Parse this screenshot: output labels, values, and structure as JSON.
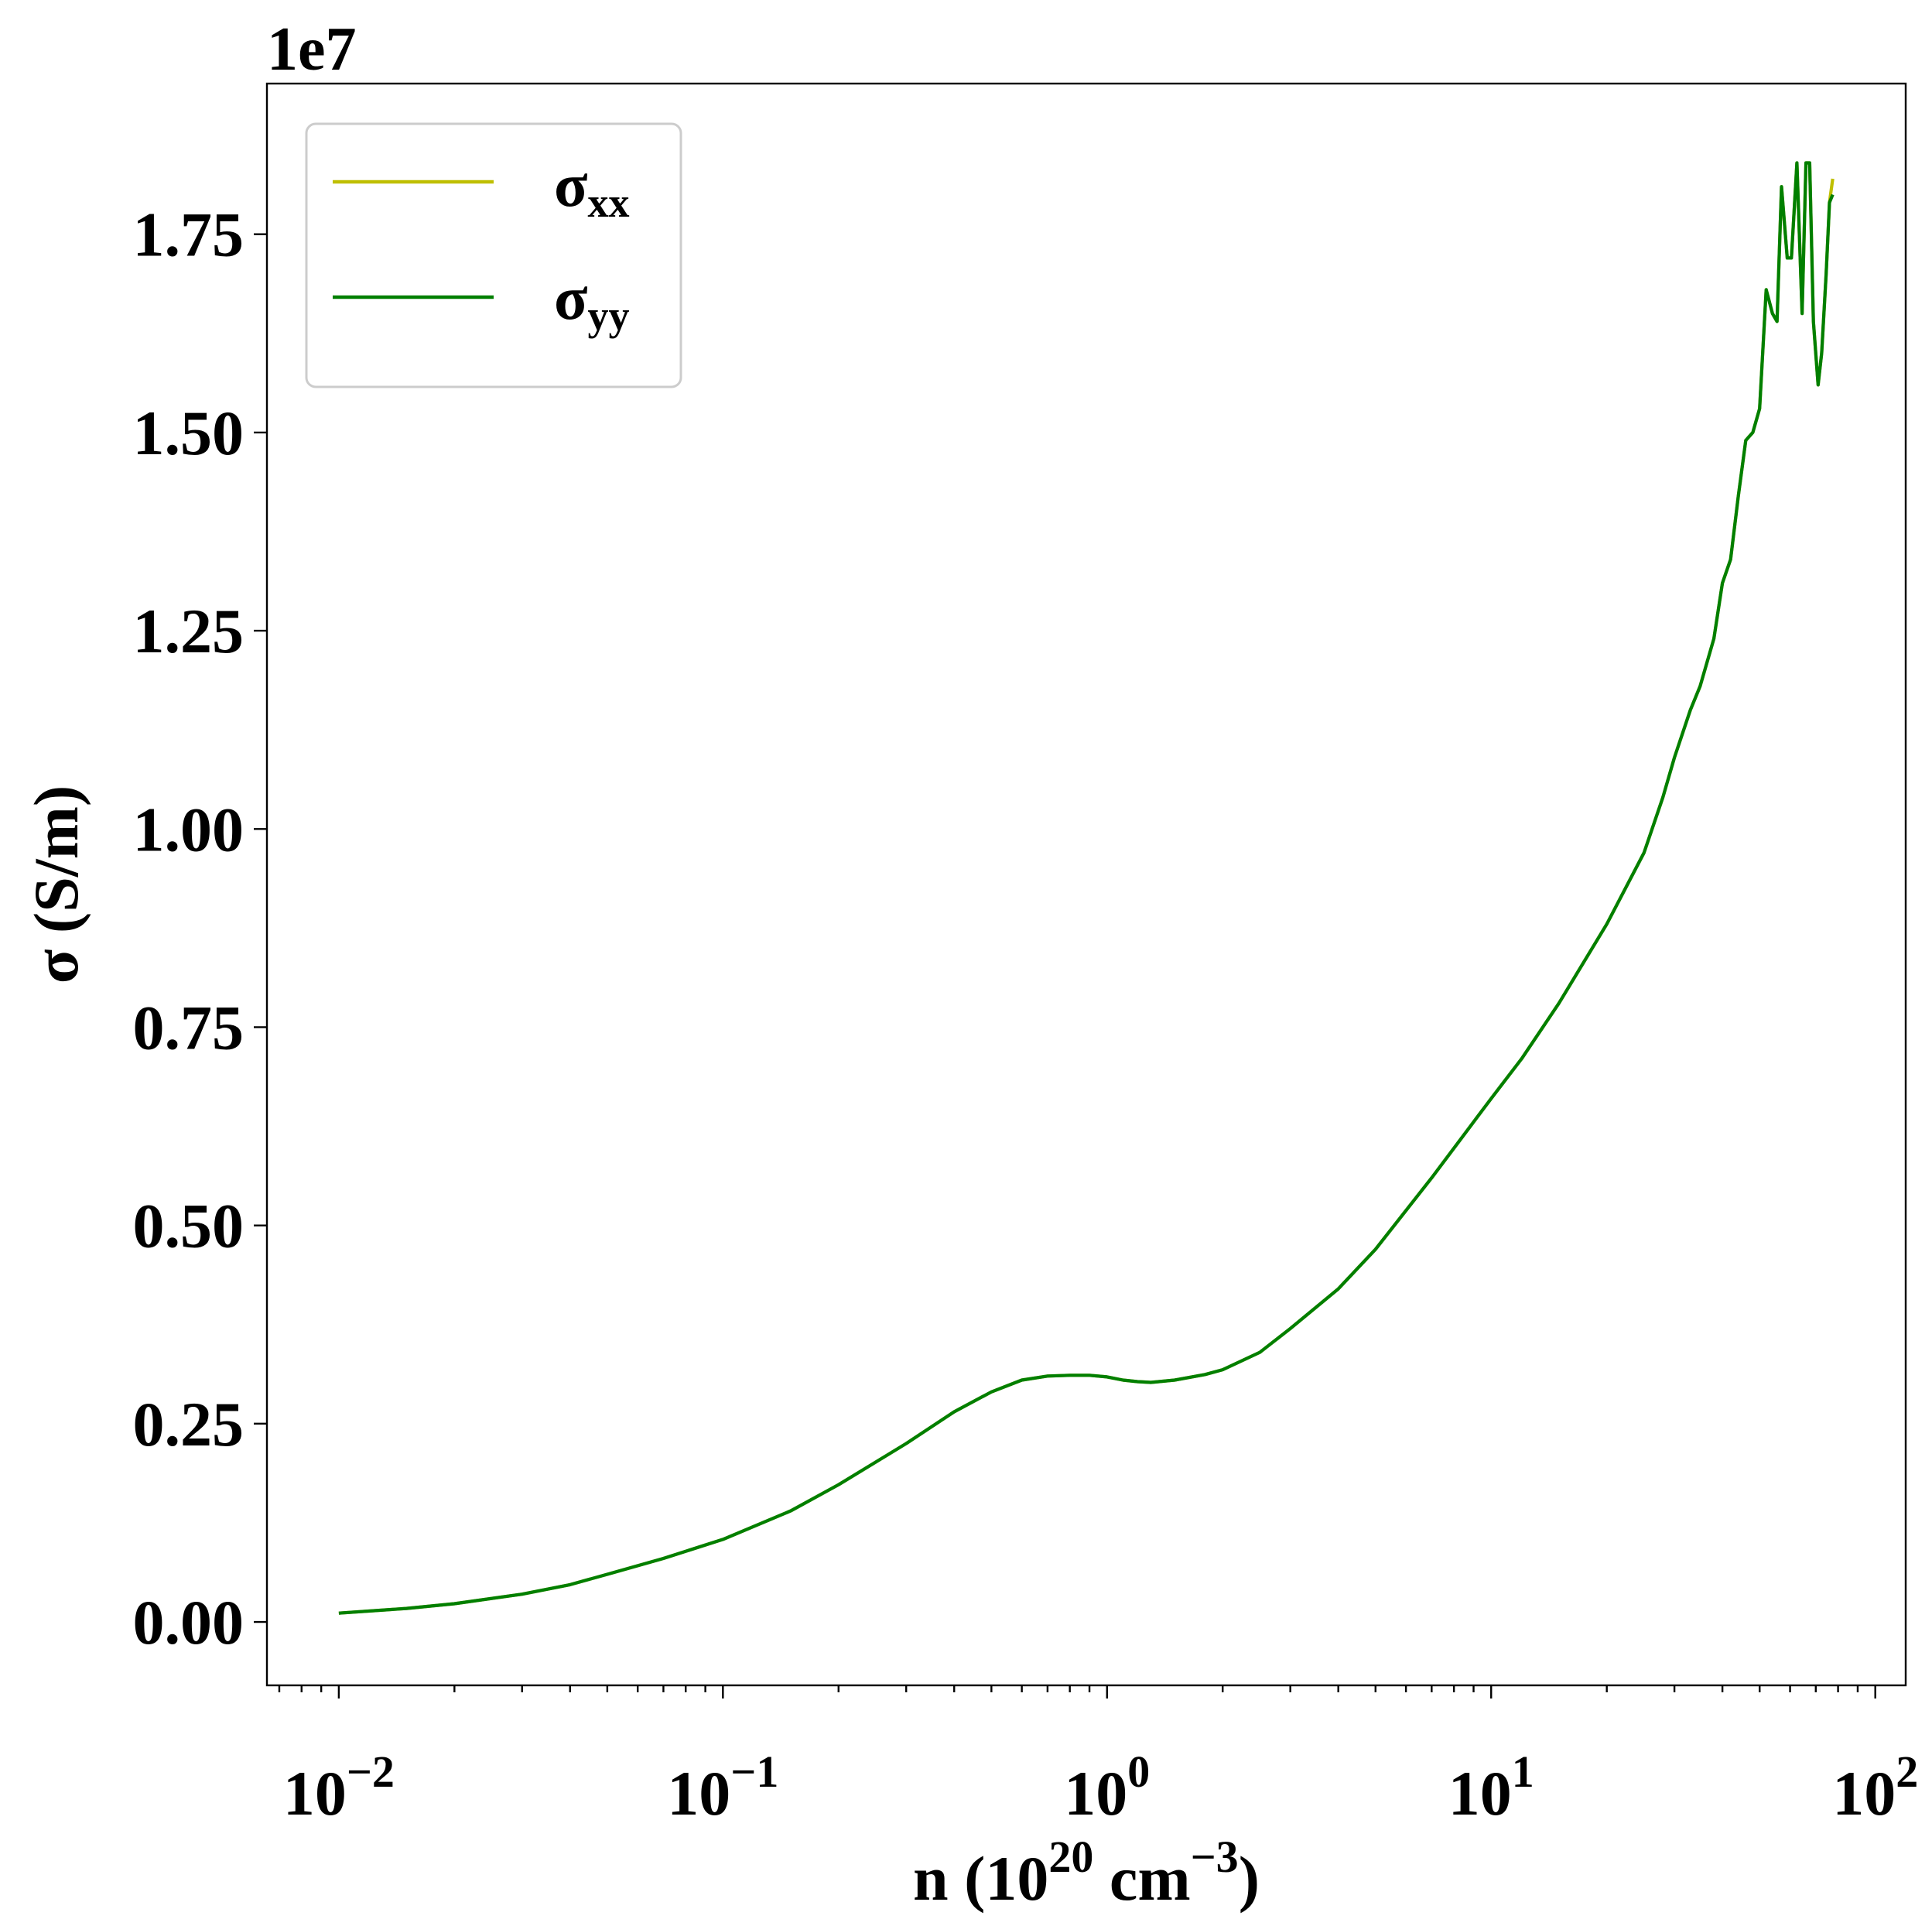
{
  "chart_data": {
    "type": "line",
    "xlabel": {
      "base": "n (10",
      "exp1": "20",
      "mid": " cm",
      "exp2": "−3",
      "end": ")"
    },
    "ylabel": "σ (S/m)",
    "y_offset_label": "1e7",
    "x_scale": "log",
    "xlim": [
      0.0065,
      120
    ],
    "ylim": [
      -0.08,
      1.94
    ],
    "y_multiplier": 10000000,
    "x_ticks_major": [
      {
        "value": 0.01,
        "base": "10",
        "exp": "−2"
      },
      {
        "value": 0.1,
        "base": "10",
        "exp": "−1"
      },
      {
        "value": 1,
        "base": "10",
        "exp": "0"
      },
      {
        "value": 10,
        "base": "10",
        "exp": "1"
      },
      {
        "value": 100,
        "base": "10",
        "exp": "2"
      }
    ],
    "y_ticks": [
      {
        "value": 0.0,
        "label": "0.00"
      },
      {
        "value": 0.25,
        "label": "0.25"
      },
      {
        "value": 0.5,
        "label": "0.50"
      },
      {
        "value": 0.75,
        "label": "0.75"
      },
      {
        "value": 1.0,
        "label": "1.00"
      },
      {
        "value": 1.25,
        "label": "1.25"
      },
      {
        "value": 1.5,
        "label": "1.50"
      },
      {
        "value": 1.75,
        "label": "1.75"
      }
    ],
    "grid": false,
    "legend_position": "upper-left",
    "series": [
      {
        "name": "σ",
        "name_sub": "xx",
        "color": "#bfbf00",
        "x": [
          0.01,
          0.015,
          0.02,
          0.03,
          0.04,
          0.05,
          0.07,
          0.1,
          0.15,
          0.2,
          0.3,
          0.4,
          0.5,
          0.6,
          0.7,
          0.8,
          0.9,
          1.0,
          1.1,
          1.2,
          1.3,
          1.5,
          1.8,
          2.0,
          2.5,
          3.0,
          4.0,
          5.0,
          7.0,
          10.0,
          12.0,
          15.0,
          20.0,
          25.0,
          28.0,
          30.0,
          33.0,
          35.0,
          38.0,
          40.0,
          42.0,
          44.0,
          46.0,
          48.0,
          50.0,
          52.0,
          54.0,
          55.5,
          57.0,
          59.0,
          60.5,
          62.5,
          64.5,
          66.0,
          67.5,
          69.0,
          71.0,
          72.5,
          74.5,
          76.0,
          77.5
        ],
        "values": [
          0.011,
          0.017,
          0.023,
          0.035,
          0.047,
          0.06,
          0.08,
          0.104,
          0.14,
          0.173,
          0.225,
          0.265,
          0.29,
          0.305,
          0.31,
          0.311,
          0.311,
          0.309,
          0.305,
          0.303,
          0.302,
          0.305,
          0.312,
          0.318,
          0.34,
          0.37,
          0.42,
          0.47,
          0.56,
          0.66,
          0.71,
          0.78,
          0.88,
          0.97,
          1.04,
          1.09,
          1.15,
          1.18,
          1.24,
          1.31,
          1.34,
          1.42,
          1.49,
          1.5,
          1.53,
          1.68,
          1.65,
          1.64,
          1.81,
          1.72,
          1.72,
          1.84,
          1.65,
          1.84,
          1.84,
          1.64,
          1.56,
          1.6,
          1.7,
          1.79,
          1.82
        ]
      },
      {
        "name": "σ",
        "name_sub": "yy",
        "color": "#007f00",
        "x": [
          0.01,
          0.015,
          0.02,
          0.03,
          0.04,
          0.05,
          0.07,
          0.1,
          0.15,
          0.2,
          0.3,
          0.4,
          0.5,
          0.6,
          0.7,
          0.8,
          0.9,
          1.0,
          1.1,
          1.2,
          1.3,
          1.5,
          1.8,
          2.0,
          2.5,
          3.0,
          4.0,
          5.0,
          7.0,
          10.0,
          12.0,
          15.0,
          20.0,
          25.0,
          28.0,
          30.0,
          33.0,
          35.0,
          38.0,
          40.0,
          42.0,
          44.0,
          46.0,
          48.0,
          50.0,
          52.0,
          54.0,
          55.5,
          57.0,
          59.0,
          60.5,
          62.5,
          64.5,
          66.0,
          67.5,
          69.0,
          71.0,
          72.5,
          74.5,
          76.0,
          77.5
        ],
        "values": [
          0.011,
          0.017,
          0.023,
          0.035,
          0.047,
          0.06,
          0.08,
          0.104,
          0.14,
          0.173,
          0.225,
          0.265,
          0.29,
          0.305,
          0.31,
          0.311,
          0.311,
          0.309,
          0.305,
          0.303,
          0.302,
          0.305,
          0.312,
          0.318,
          0.34,
          0.37,
          0.42,
          0.47,
          0.56,
          0.66,
          0.71,
          0.78,
          0.88,
          0.97,
          1.04,
          1.09,
          1.15,
          1.18,
          1.24,
          1.31,
          1.34,
          1.42,
          1.49,
          1.5,
          1.53,
          1.68,
          1.65,
          1.64,
          1.81,
          1.72,
          1.72,
          1.84,
          1.65,
          1.84,
          1.84,
          1.64,
          1.56,
          1.6,
          1.7,
          1.79,
          1.8
        ]
      }
    ]
  }
}
